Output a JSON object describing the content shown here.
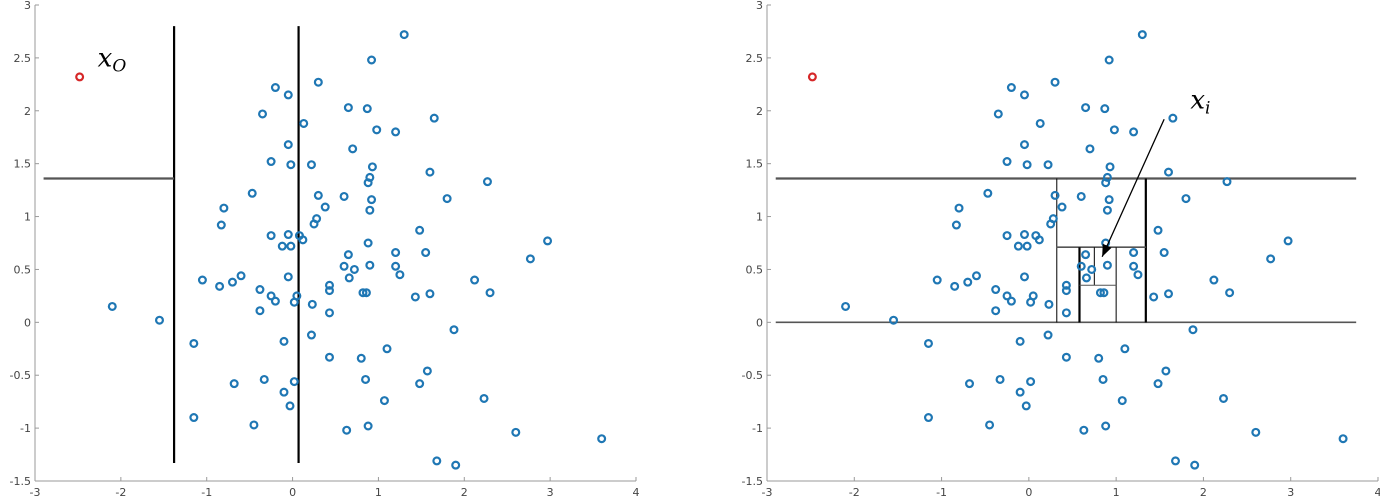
{
  "chart_data": [
    {
      "type": "scatter",
      "title": "",
      "xlabel": "",
      "ylabel": "",
      "xlim": [
        -3,
        4
      ],
      "ylim": [
        -1.5,
        3
      ],
      "grid": false,
      "x_ticks": [
        "-3",
        "-2",
        "-1",
        "0",
        "1",
        "2",
        "3",
        "4"
      ],
      "y_ticks": [
        "-1.5",
        "-1",
        "-0.5",
        "0",
        "0.5",
        "1",
        "1.5",
        "2",
        "2.5",
        "3"
      ],
      "colors": {
        "points": "#1f77b4",
        "outlier": "#d62728",
        "split": "#000000",
        "split_h": "#555555"
      },
      "series": [
        {
          "role": "normal",
          "points": [
            [
              1.3,
              2.72
            ],
            [
              0.92,
              2.48
            ],
            [
              0.3,
              2.27
            ],
            [
              -0.2,
              2.22
            ],
            [
              -0.05,
              2.15
            ],
            [
              0.65,
              2.03
            ],
            [
              0.87,
              2.02
            ],
            [
              -0.35,
              1.97
            ],
            [
              1.65,
              1.93
            ],
            [
              0.13,
              1.88
            ],
            [
              0.98,
              1.82
            ],
            [
              1.2,
              1.8
            ],
            [
              -0.05,
              1.68
            ],
            [
              0.7,
              1.64
            ],
            [
              -0.25,
              1.52
            ],
            [
              0.22,
              1.49
            ],
            [
              -0.02,
              1.49
            ],
            [
              0.93,
              1.47
            ],
            [
              1.6,
              1.42
            ],
            [
              0.9,
              1.37
            ],
            [
              0.88,
              1.32
            ],
            [
              2.27,
              1.33
            ],
            [
              0.6,
              1.19
            ],
            [
              0.3,
              1.2
            ],
            [
              -0.47,
              1.22
            ],
            [
              0.92,
              1.16
            ],
            [
              1.8,
              1.17
            ],
            [
              0.38,
              1.09
            ],
            [
              -0.8,
              1.08
            ],
            [
              0.9,
              1.06
            ],
            [
              0.28,
              0.98
            ],
            [
              0.25,
              0.93
            ],
            [
              -0.83,
              0.92
            ],
            [
              1.48,
              0.87
            ],
            [
              -0.05,
              0.83
            ],
            [
              -0.25,
              0.82
            ],
            [
              0.08,
              0.82
            ],
            [
              0.12,
              0.78
            ],
            [
              0.88,
              0.75
            ],
            [
              2.97,
              0.77
            ],
            [
              -0.12,
              0.72
            ],
            [
              -0.02,
              0.72
            ],
            [
              1.2,
              0.66
            ],
            [
              1.55,
              0.66
            ],
            [
              0.65,
              0.64
            ],
            [
              2.77,
              0.6
            ],
            [
              0.6,
              0.53
            ],
            [
              0.72,
              0.5
            ],
            [
              0.9,
              0.54
            ],
            [
              1.2,
              0.53
            ],
            [
              0.66,
              0.42
            ],
            [
              1.25,
              0.45
            ],
            [
              -0.6,
              0.44
            ],
            [
              -0.05,
              0.43
            ],
            [
              -1.05,
              0.4
            ],
            [
              2.12,
              0.4
            ],
            [
              -0.7,
              0.38
            ],
            [
              0.43,
              0.35
            ],
            [
              -0.85,
              0.34
            ],
            [
              0.43,
              0.3
            ],
            [
              -0.38,
              0.31
            ],
            [
              0.82,
              0.28
            ],
            [
              0.86,
              0.28
            ],
            [
              1.6,
              0.27
            ],
            [
              2.3,
              0.28
            ],
            [
              -0.25,
              0.25
            ],
            [
              0.05,
              0.25
            ],
            [
              1.43,
              0.24
            ],
            [
              -0.2,
              0.2
            ],
            [
              0.02,
              0.19
            ],
            [
              0.23,
              0.17
            ],
            [
              -2.1,
              0.15
            ],
            [
              0.43,
              0.09
            ],
            [
              -0.38,
              0.11
            ],
            [
              -1.55,
              0.02
            ],
            [
              1.88,
              -0.07
            ],
            [
              0.22,
              -0.12
            ],
            [
              -0.1,
              -0.18
            ],
            [
              -1.15,
              -0.2
            ],
            [
              1.1,
              -0.25
            ],
            [
              0.43,
              -0.33
            ],
            [
              0.8,
              -0.34
            ],
            [
              1.57,
              -0.46
            ],
            [
              0.85,
              -0.54
            ],
            [
              -0.68,
              -0.58
            ],
            [
              -0.33,
              -0.54
            ],
            [
              1.48,
              -0.58
            ],
            [
              0.02,
              -0.56
            ],
            [
              -0.1,
              -0.66
            ],
            [
              2.23,
              -0.72
            ],
            [
              1.07,
              -0.74
            ],
            [
              -0.03,
              -0.79
            ],
            [
              -1.15,
              -0.9
            ],
            [
              -0.45,
              -0.97
            ],
            [
              0.88,
              -0.98
            ],
            [
              0.63,
              -1.02
            ],
            [
              2.6,
              -1.04
            ],
            [
              3.6,
              -1.1
            ],
            [
              1.68,
              -1.31
            ],
            [
              1.9,
              -1.35
            ]
          ]
        },
        {
          "role": "outlier",
          "points": [
            [
              -2.48,
              2.32
            ]
          ]
        }
      ],
      "partition_lines": [
        {
          "orient": "v",
          "x": -1.38,
          "y_from": -1.33,
          "y_to": 2.8,
          "weight": "heavy"
        },
        {
          "orient": "v",
          "x": 0.07,
          "y_from": -1.33,
          "y_to": 2.8,
          "weight": "heavy"
        },
        {
          "orient": "h",
          "y": 1.36,
          "x_from": -2.9,
          "x_to": -1.38,
          "weight": "heavy"
        }
      ],
      "annotations": [
        {
          "text": "x",
          "sub": "O",
          "x": -2.27,
          "y": 2.42
        }
      ]
    },
    {
      "type": "scatter",
      "title": "",
      "xlabel": "",
      "ylabel": "",
      "xlim": [
        -3,
        4
      ],
      "ylim": [
        -1.5,
        3
      ],
      "grid": false,
      "x_ticks": [
        "-3",
        "-2",
        "-1",
        "0",
        "1",
        "2",
        "3",
        "4"
      ],
      "y_ticks": [
        "-1.5",
        "-1",
        "-0.5",
        "0",
        "0.5",
        "1",
        "1.5",
        "2",
        "2.5",
        "3"
      ],
      "colors": {
        "points": "#1f77b4",
        "outlier": "#d62728",
        "split": "#000000",
        "split_h": "#555555"
      },
      "series": [
        {
          "role": "normal",
          "points": [
            [
              1.3,
              2.72
            ],
            [
              0.92,
              2.48
            ],
            [
              0.3,
              2.27
            ],
            [
              -0.2,
              2.22
            ],
            [
              -0.05,
              2.15
            ],
            [
              0.65,
              2.03
            ],
            [
              0.87,
              2.02
            ],
            [
              -0.35,
              1.97
            ],
            [
              1.65,
              1.93
            ],
            [
              0.13,
              1.88
            ],
            [
              0.98,
              1.82
            ],
            [
              1.2,
              1.8
            ],
            [
              -0.05,
              1.68
            ],
            [
              0.7,
              1.64
            ],
            [
              -0.25,
              1.52
            ],
            [
              0.22,
              1.49
            ],
            [
              -0.02,
              1.49
            ],
            [
              0.93,
              1.47
            ],
            [
              1.6,
              1.42
            ],
            [
              0.9,
              1.37
            ],
            [
              0.88,
              1.32
            ],
            [
              2.27,
              1.33
            ],
            [
              0.6,
              1.19
            ],
            [
              0.3,
              1.2
            ],
            [
              -0.47,
              1.22
            ],
            [
              0.92,
              1.16
            ],
            [
              1.8,
              1.17
            ],
            [
              0.38,
              1.09
            ],
            [
              -0.8,
              1.08
            ],
            [
              0.9,
              1.06
            ],
            [
              0.28,
              0.98
            ],
            [
              0.25,
              0.93
            ],
            [
              -0.83,
              0.92
            ],
            [
              1.48,
              0.87
            ],
            [
              -0.05,
              0.83
            ],
            [
              -0.25,
              0.82
            ],
            [
              0.08,
              0.82
            ],
            [
              0.12,
              0.78
            ],
            [
              0.88,
              0.75
            ],
            [
              2.97,
              0.77
            ],
            [
              -0.12,
              0.72
            ],
            [
              -0.02,
              0.72
            ],
            [
              1.2,
              0.66
            ],
            [
              1.55,
              0.66
            ],
            [
              0.65,
              0.64
            ],
            [
              2.77,
              0.6
            ],
            [
              0.6,
              0.53
            ],
            [
              0.72,
              0.5
            ],
            [
              0.9,
              0.54
            ],
            [
              1.2,
              0.53
            ],
            [
              0.66,
              0.42
            ],
            [
              1.25,
              0.45
            ],
            [
              -0.6,
              0.44
            ],
            [
              -0.05,
              0.43
            ],
            [
              -1.05,
              0.4
            ],
            [
              2.12,
              0.4
            ],
            [
              -0.7,
              0.38
            ],
            [
              0.43,
              0.35
            ],
            [
              -0.85,
              0.34
            ],
            [
              0.43,
              0.3
            ],
            [
              -0.38,
              0.31
            ],
            [
              0.82,
              0.28
            ],
            [
              0.86,
              0.28
            ],
            [
              1.6,
              0.27
            ],
            [
              2.3,
              0.28
            ],
            [
              -0.25,
              0.25
            ],
            [
              0.05,
              0.25
            ],
            [
              1.43,
              0.24
            ],
            [
              -0.2,
              0.2
            ],
            [
              0.02,
              0.19
            ],
            [
              0.23,
              0.17
            ],
            [
              -2.1,
              0.15
            ],
            [
              0.43,
              0.09
            ],
            [
              -0.38,
              0.11
            ],
            [
              -1.55,
              0.02
            ],
            [
              1.88,
              -0.07
            ],
            [
              0.22,
              -0.12
            ],
            [
              -0.1,
              -0.18
            ],
            [
              -1.15,
              -0.2
            ],
            [
              1.1,
              -0.25
            ],
            [
              0.43,
              -0.33
            ],
            [
              0.8,
              -0.34
            ],
            [
              1.57,
              -0.46
            ],
            [
              0.85,
              -0.54
            ],
            [
              -0.68,
              -0.58
            ],
            [
              -0.33,
              -0.54
            ],
            [
              1.48,
              -0.58
            ],
            [
              0.02,
              -0.56
            ],
            [
              -0.1,
              -0.66
            ],
            [
              2.23,
              -0.72
            ],
            [
              1.07,
              -0.74
            ],
            [
              -0.03,
              -0.79
            ],
            [
              -1.15,
              -0.9
            ],
            [
              -0.45,
              -0.97
            ],
            [
              0.88,
              -0.98
            ],
            [
              0.63,
              -1.02
            ],
            [
              2.6,
              -1.04
            ],
            [
              3.6,
              -1.1
            ],
            [
              1.68,
              -1.31
            ],
            [
              1.9,
              -1.35
            ]
          ]
        },
        {
          "role": "outlier",
          "points": [
            [
              -2.48,
              2.32
            ]
          ]
        }
      ],
      "partition_lines": [
        {
          "orient": "h",
          "y": 1.36,
          "x_from": -2.9,
          "x_to": 3.75,
          "weight": "heavy"
        },
        {
          "orient": "h",
          "y": 0.0,
          "x_from": -2.9,
          "x_to": 3.75,
          "weight": "medium"
        },
        {
          "orient": "v",
          "x": 1.34,
          "y_from": 0.0,
          "y_to": 1.36,
          "weight": "heavy"
        },
        {
          "orient": "v",
          "x": 0.32,
          "y_from": 0.0,
          "y_to": 1.36,
          "weight": "light"
        },
        {
          "orient": "h",
          "y": 0.71,
          "x_from": 0.32,
          "x_to": 1.34,
          "weight": "medium"
        },
        {
          "orient": "v",
          "x": 0.58,
          "y_from": 0.0,
          "y_to": 0.71,
          "weight": "heavy"
        },
        {
          "orient": "v",
          "x": 1.0,
          "y_from": 0.0,
          "y_to": 0.71,
          "weight": "light"
        },
        {
          "orient": "v",
          "x": 0.75,
          "y_from": 0.35,
          "y_to": 0.71,
          "weight": "light"
        },
        {
          "orient": "h",
          "y": 0.35,
          "x_from": 0.58,
          "x_to": 1.0,
          "weight": "light"
        }
      ],
      "annotations": [
        {
          "text": "x",
          "sub": "i",
          "x": 1.85,
          "y": 2.02
        },
        {
          "text": "",
          "x": -0.05,
          "y": -0.05
        }
      ],
      "arrow": {
        "from": [
          1.55,
          1.92
        ],
        "to": [
          0.84,
          0.62
        ]
      }
    }
  ]
}
